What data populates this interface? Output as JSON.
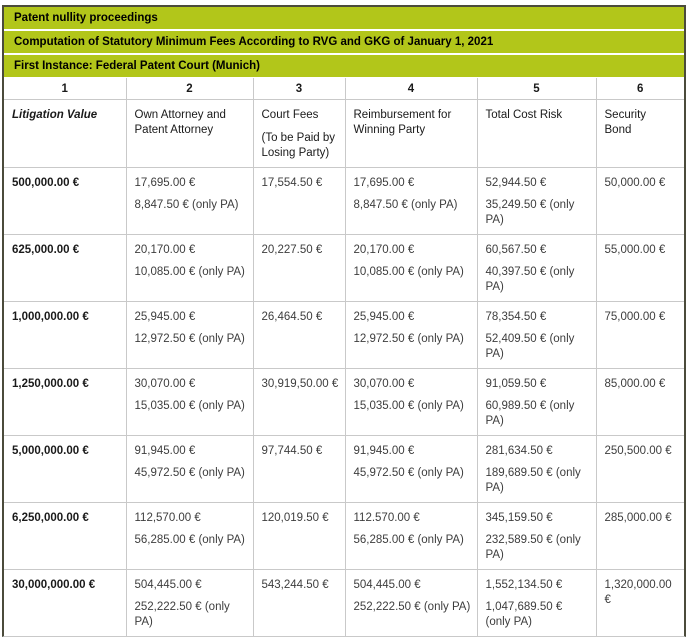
{
  "header": {
    "title": "Patent nullity proceedings",
    "subtitle": "Computation of Statutory Minimum Fees According to RVG and GKG of January 1, 2021",
    "instance": "First Instance: Federal Patent Court (Munich)"
  },
  "colors": {
    "header_green": "#b2c61a",
    "outer_border": "#4b4b3b",
    "grid_line": "#c9c9c9",
    "header_text": "#000000",
    "data_text": "#3d3d3d"
  },
  "table": {
    "column_numbers": [
      "1",
      "2",
      "3",
      "4",
      "5",
      "6"
    ],
    "columns": [
      {
        "label": "Litigation Value"
      },
      {
        "label": "Own Attorney and Patent Attorney"
      },
      {
        "label": "Court Fees",
        "sublabel": "(To be Paid by Losing Party)"
      },
      {
        "label": "Reimbursement for Winning Party"
      },
      {
        "label": "Total Cost Risk"
      },
      {
        "label": "Security Bond"
      }
    ],
    "rows": [
      {
        "cells": [
          {
            "lines": [
              "500,000.00 €"
            ]
          },
          {
            "lines": [
              "17,695.00 €",
              "8,847.50 € (only PA)"
            ]
          },
          {
            "lines": [
              "17,554.50 €"
            ]
          },
          {
            "lines": [
              "17,695.00 €",
              "8,847.50 € (only PA)"
            ]
          },
          {
            "lines": [
              "52,944.50 €",
              "35,249.50 € (only PA)"
            ]
          },
          {
            "lines": [
              "50,000.00 €"
            ]
          }
        ]
      },
      {
        "cells": [
          {
            "lines": [
              "625,000.00 €"
            ]
          },
          {
            "lines": [
              "20,170.00 €",
              "10,085.00 € (only PA)"
            ]
          },
          {
            "lines": [
              "20,227.50 €"
            ]
          },
          {
            "lines": [
              "20,170.00 €",
              "10,085.00 € (only PA)"
            ]
          },
          {
            "lines": [
              "60,567.50 €",
              "40,397.50 € (only PA)"
            ]
          },
          {
            "lines": [
              "55,000.00 €"
            ]
          }
        ]
      },
      {
        "cells": [
          {
            "lines": [
              "1,000,000.00 €"
            ]
          },
          {
            "lines": [
              "25,945.00 €",
              "12,972.50 € (only PA)"
            ]
          },
          {
            "lines": [
              "26,464.50 €"
            ]
          },
          {
            "lines": [
              "25,945.00 €",
              "12,972.50 € (only PA)"
            ]
          },
          {
            "lines": [
              "78,354.50 €",
              "52,409.50 € (only PA)"
            ]
          },
          {
            "lines": [
              "75,000.00 €"
            ]
          }
        ]
      },
      {
        "cells": [
          {
            "lines": [
              "1,250,000.00 €"
            ]
          },
          {
            "lines": [
              "30,070.00 €",
              "15,035.00 € (only PA)"
            ]
          },
          {
            "lines": [
              "30,919,50.00 €"
            ]
          },
          {
            "lines": [
              "30,070.00 €",
              "15,035.00 € (only PA)"
            ]
          },
          {
            "lines": [
              "91,059.50 €",
              "60,989.50 € (only PA)"
            ]
          },
          {
            "lines": [
              "85,000.00 €"
            ]
          }
        ]
      },
      {
        "cells": [
          {
            "lines": [
              "5,000,000.00 €"
            ]
          },
          {
            "lines": [
              "91,945.00 €",
              "45,972.50 € (only PA)"
            ]
          },
          {
            "lines": [
              "97,744.50 €"
            ]
          },
          {
            "lines": [
              "91,945.00 €",
              "45,972.50 € (only PA)"
            ]
          },
          {
            "lines": [
              "281,634.50 €",
              "189,689.50 € (only PA)"
            ]
          },
          {
            "lines": [
              "250,500.00 €"
            ]
          }
        ]
      },
      {
        "cells": [
          {
            "lines": [
              "6,250,000.00 €"
            ]
          },
          {
            "lines": [
              "112,570.00 €",
              "56,285.00 € (only PA)"
            ]
          },
          {
            "lines": [
              "120,019.50 €"
            ]
          },
          {
            "lines": [
              "112.570.00 €",
              "56,285.00 € (only PA)"
            ]
          },
          {
            "lines": [
              "345,159.50 €",
              "232,589.50 € (only PA)"
            ]
          },
          {
            "lines": [
              "285,000.00 €"
            ]
          }
        ]
      },
      {
        "cells": [
          {
            "lines": [
              "30,000,000.00 €"
            ]
          },
          {
            "lines": [
              "504,445.00 €",
              "252,222.50 € (only PA)"
            ]
          },
          {
            "lines": [
              "543,244.50 €"
            ]
          },
          {
            "lines": [
              "504,445.00 €",
              "252,222.50 € (only PA)"
            ]
          },
          {
            "lines": [
              "1,552,134.50 €",
              "1,047,689.50 € (only PA)"
            ]
          },
          {
            "lines": [
              "1,320,000.00 €"
            ]
          }
        ]
      }
    ]
  }
}
